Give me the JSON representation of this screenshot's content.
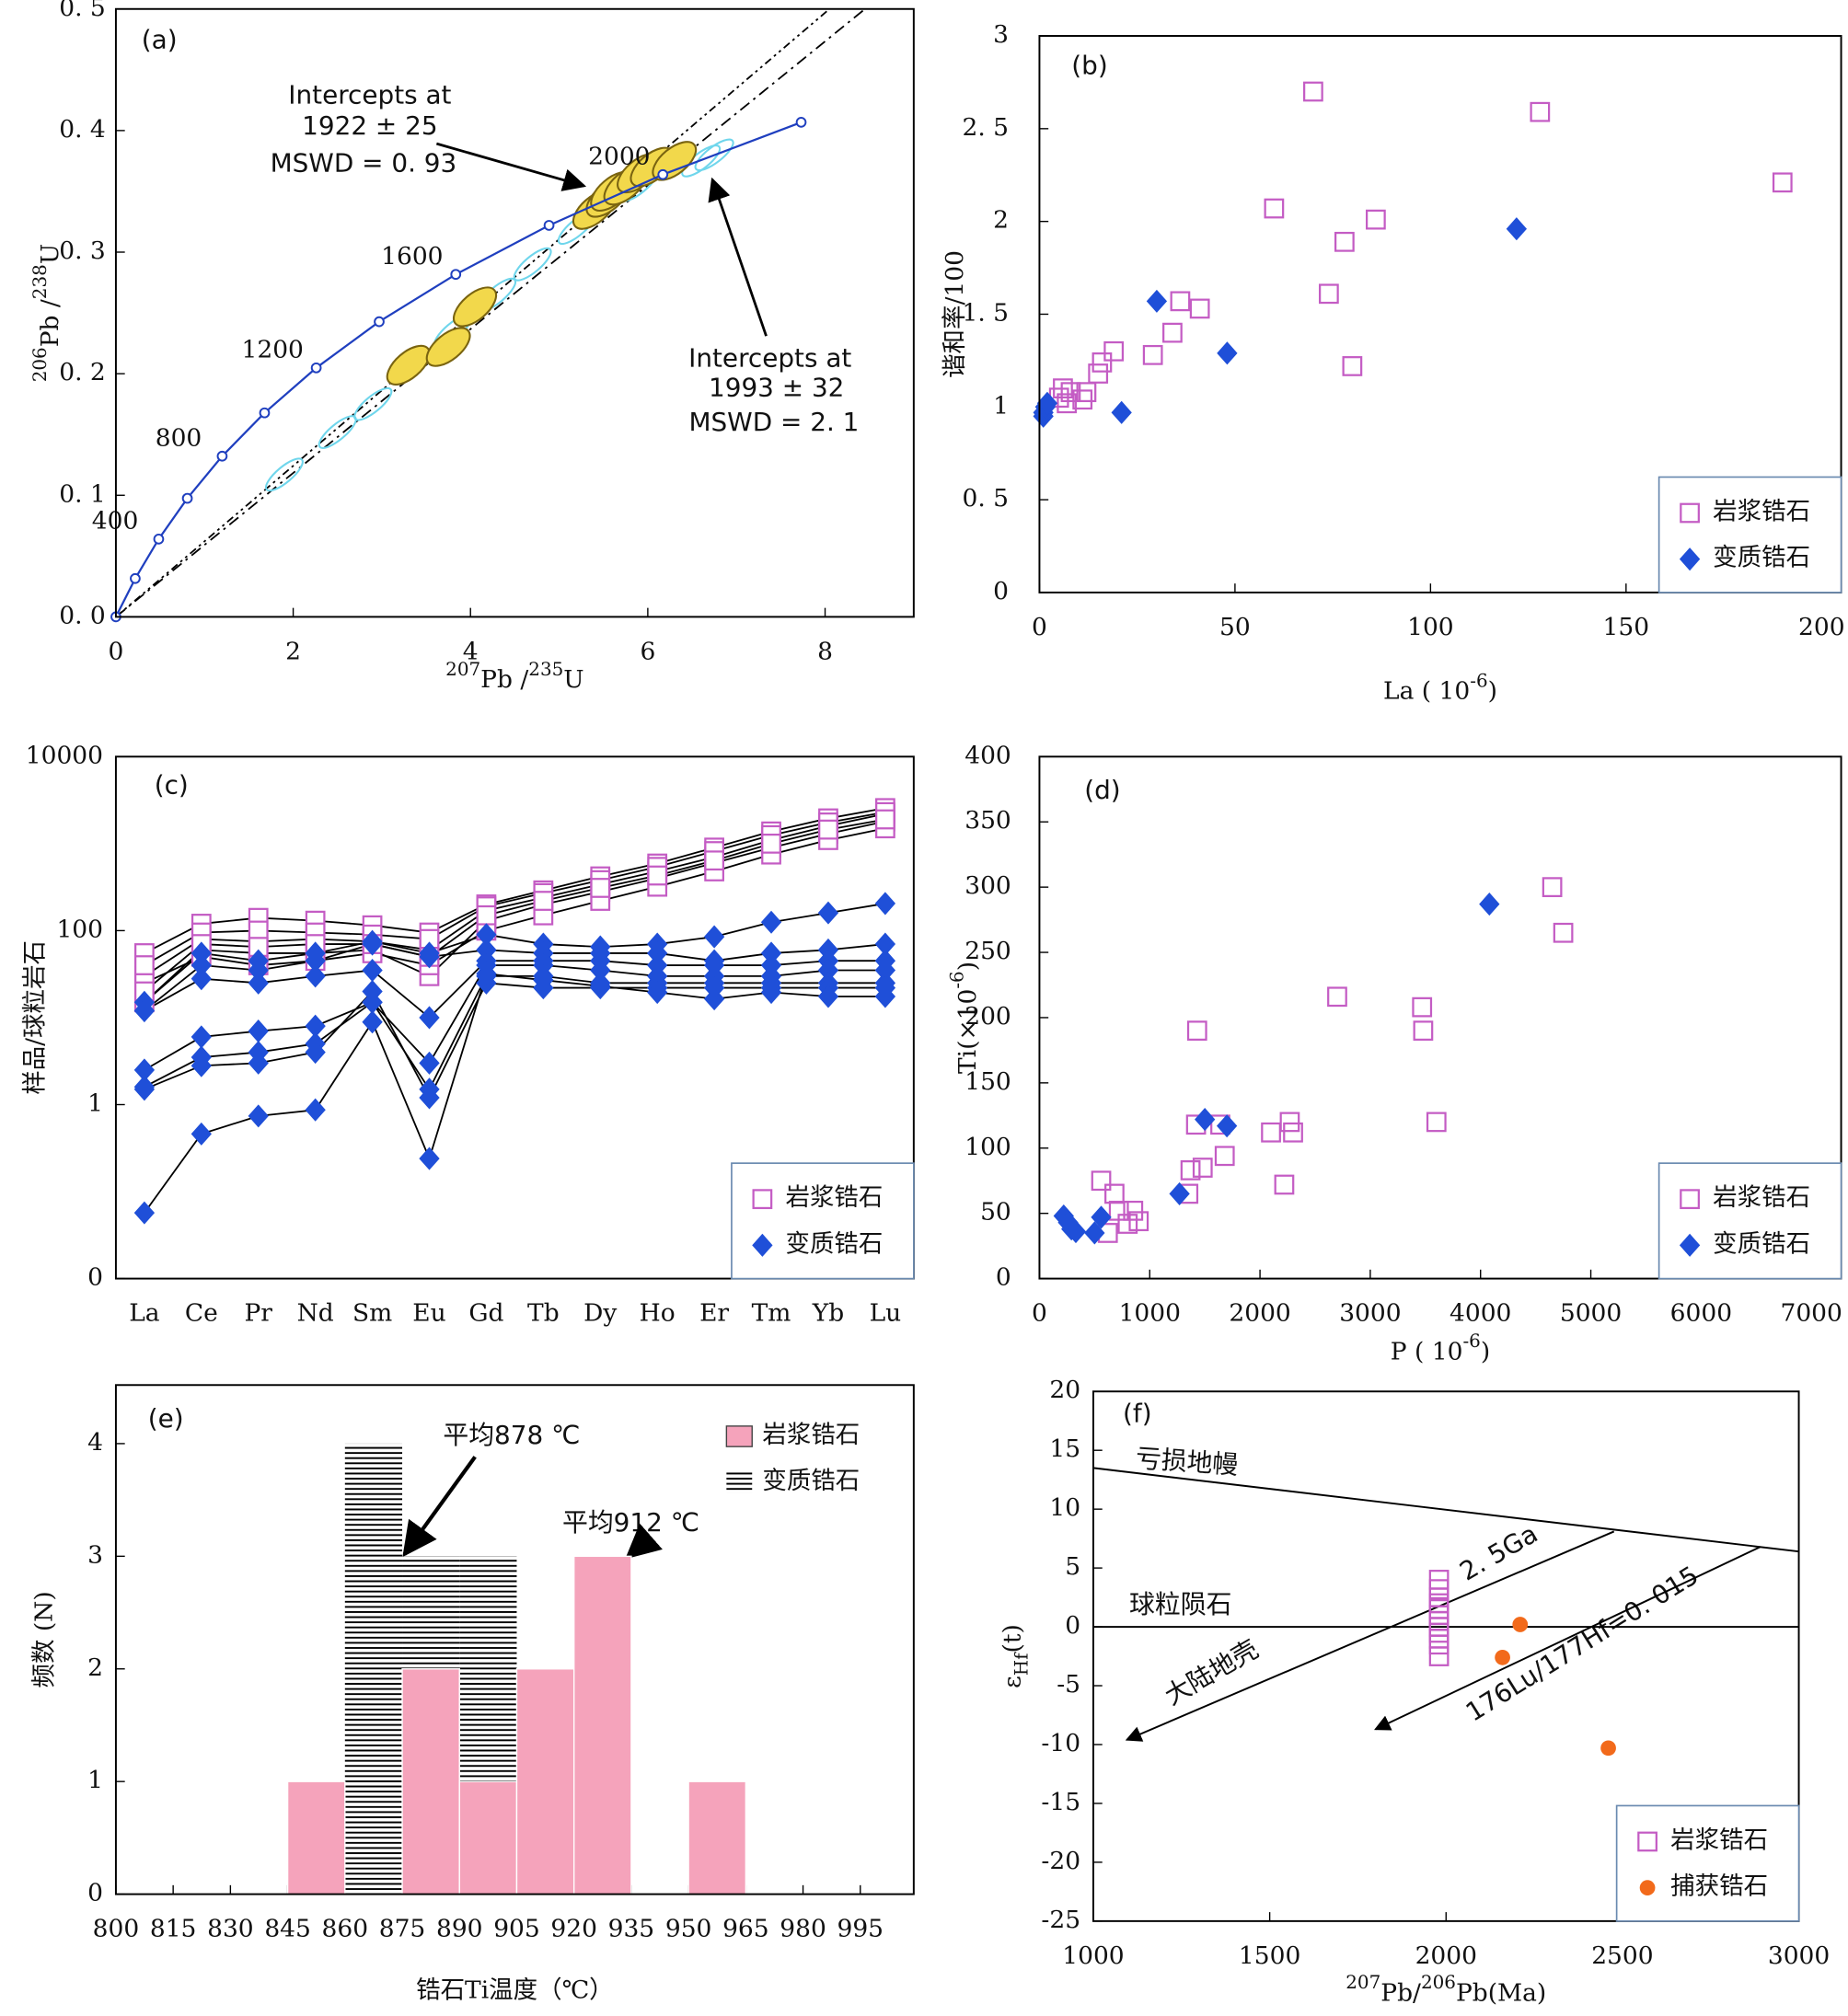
{
  "chart_data": [
    {
      "type": "concordia",
      "panel_label": "(a)",
      "xlabel": [
        {
          "sup": "207"
        },
        "Pb /",
        {
          "sup": "235"
        },
        "U"
      ],
      "ylabel": [
        {
          "sup": "206"
        },
        "Pb /",
        {
          "sup": "238"
        },
        "U"
      ],
      "xlim": [
        0,
        9
      ],
      "ylim": [
        0,
        0.5
      ],
      "xticks": [
        0,
        2,
        4,
        6,
        8
      ],
      "yticks": [
        {
          "value": 0,
          "label": "0. 0"
        },
        {
          "value": 0.1,
          "label": "0. 1"
        },
        {
          "value": 0.2,
          "label": "0. 2"
        },
        {
          "value": 0.3,
          "label": "0. 3"
        },
        {
          "value": 0.4,
          "label": "0. 4"
        },
        {
          "value": 0.5,
          "label": "0. 5"
        }
      ],
      "concordia": {
        "color": "#1f3fbf",
        "ages": [
          null,
          null,
          400,
          null,
          800,
          null,
          1200,
          null,
          1600,
          null,
          2000,
          null
        ],
        "x": [
          0,
          0.218,
          0.483,
          0.806,
          1.199,
          1.677,
          2.26,
          2.97,
          3.834,
          4.886,
          6.17,
          7.73
        ],
        "y": [
          0,
          0.0315,
          0.064,
          0.0975,
          0.1322,
          0.1678,
          0.2048,
          0.2428,
          0.2817,
          0.322,
          0.3638,
          0.4068
        ]
      },
      "discordia": [
        {
          "x": [
            0,
            8.05
          ],
          "y": [
            0,
            0.5
          ]
        },
        {
          "x": [
            0,
            8.45
          ],
          "y": [
            0,
            0.5
          ]
        }
      ],
      "ellipses": [
        {
          "color": "#f2d84b",
          "filled": true,
          "x": [
            3.3,
            3.75,
            4.05,
            5.4,
            5.55,
            5.6,
            5.75,
            5.9,
            6.05,
            6.3
          ],
          "y": [
            0.207,
            0.222,
            0.255,
            0.335,
            0.345,
            0.35,
            0.355,
            0.365,
            0.37,
            0.375
          ]
        },
        {
          "color": "#6fd6ec",
          "filled": false,
          "x": [
            1.9,
            2.5,
            2.9,
            3.8,
            4.3,
            4.7,
            5.2,
            5.9,
            6.6,
            6.75
          ],
          "y": [
            0.117,
            0.152,
            0.175,
            0.235,
            0.265,
            0.29,
            0.32,
            0.355,
            0.375,
            0.38
          ]
        }
      ],
      "annotations": [
        "Intercepts at",
        "1922 ± 25",
        "MSWD = 0. 93",
        "Intercepts at",
        "1993 ± 32",
        "MSWD = 2. 1"
      ]
    },
    {
      "type": "scatter",
      "panel_label": "(b)",
      "xlabel": [
        "La ( 10",
        {
          "sup": "-6"
        },
        ")"
      ],
      "ylabel": [
        "谐和率/100"
      ],
      "xlim": [
        0,
        205
      ],
      "ylim": [
        0,
        3
      ],
      "xticks": [
        0,
        50,
        100,
        150,
        200
      ],
      "yticks": [
        0,
        {
          "value": 0.5,
          "label": "0. 5"
        },
        1,
        {
          "value": 1.5,
          "label": "1. 5"
        },
        2,
        {
          "value": 2.5,
          "label": "2. 5"
        },
        3
      ],
      "legend": "lower right",
      "series": [
        {
          "name": "岩浆锆石",
          "color": "#c45cc4",
          "marker": "square",
          "x": [
            5,
            6,
            7,
            8,
            11,
            12,
            15,
            16,
            19,
            29,
            34,
            36,
            41,
            60,
            70,
            74,
            78,
            80,
            86,
            128,
            190
          ],
          "y": [
            1.05,
            1.1,
            1.02,
            1.08,
            1.04,
            1.08,
            1.18,
            1.24,
            1.3,
            1.28,
            1.4,
            1.57,
            1.53,
            2.07,
            2.7,
            1.61,
            1.89,
            1.22,
            2.01,
            2.59,
            2.21
          ]
        },
        {
          "name": "变质锆石",
          "color": "#1f4fd8",
          "marker": "diamond",
          "x": [
            1,
            1,
            1.5,
            2,
            21,
            30,
            48,
            122
          ],
          "y": [
            0.95,
            0.97,
            1.0,
            1.02,
            0.97,
            1.57,
            1.29,
            1.96
          ]
        }
      ]
    },
    {
      "type": "spider",
      "panel_label": "(c)",
      "ylabel": [
        "样品/球粒岩石"
      ],
      "categories": [
        "La",
        "Ce",
        "Pr",
        "Nd",
        "Sm",
        "Eu",
        "Gd",
        "Tb",
        "Dy",
        "Ho",
        "Er",
        "Tm",
        "Yb",
        "Lu"
      ],
      "log": true,
      "ylim": [
        0.01,
        10000
      ],
      "yticks": [
        {
          "value": 0.01,
          "label": "0"
        },
        1,
        100,
        10000
      ],
      "legend": "lower right",
      "series": [
        {
          "name": "岩浆锆石",
          "color": "#c45cc4",
          "marker": "square",
          "line_color": "#000000",
          "values": [
            [
              55,
              120,
              140,
              130,
              115,
              95,
              200,
              290,
              420,
              590,
              900,
              1380,
              1950,
              2560
            ],
            [
              30,
              80,
              75,
              80,
              75,
              60,
              170,
              240,
              340,
              480,
              700,
              1100,
              1600,
              2200
            ],
            [
              15,
              60,
              55,
              55,
              60,
              30,
              130,
              200,
              280,
              400,
              600,
              900,
              1300,
              1800
            ],
            [
              25,
              50,
              40,
              45,
              55,
              40,
              100,
              150,
              220,
              320,
              480,
              750,
              1100,
              1500
            ],
            [
              40,
              95,
              100,
              95,
              90,
              80,
              190,
              270,
              380,
              540,
              820,
              1250,
              1750,
              2300
            ],
            [
              20,
              70,
              65,
              70,
              70,
              50,
              150,
              220,
              310,
              430,
              640,
              1000,
              1450,
              1900
            ]
          ]
        },
        {
          "name": "变质锆石",
          "color": "#1f4fd8",
          "marker": "diamond",
          "line_color": "#000000",
          "values": [
            [
              15,
              55,
              45,
              55,
              75,
              55,
              90,
              70,
              65,
              70,
              85,
              125,
              160,
              205
            ],
            [
              12,
              40,
              35,
              45,
              70,
              50,
              60,
              55,
              55,
              55,
              45,
              55,
              60,
              70
            ],
            [
              12,
              28,
              25,
              30,
              35,
              10,
              45,
              45,
              45,
              40,
              40,
              40,
              45,
              45
            ],
            [
              2.5,
              6,
              7,
              8,
              15,
              3,
              40,
              40,
              35,
              30,
              30,
              30,
              35,
              35
            ],
            [
              1.6,
              3.5,
              4,
              5,
              15,
              1.5,
              30,
              30,
              25,
              25,
              25,
              25,
              25,
              25
            ],
            [
              1.5,
              2.8,
              3,
              4,
              20,
              1.2,
              25,
              22,
              22,
              22,
              22,
              22,
              22,
              22
            ],
            [
              0.057,
              0.46,
              0.74,
              0.87,
              8.9,
              0.24,
              32,
              27,
              23,
              19.5,
              16.4,
              19.5,
              17.5,
              17.5
            ]
          ]
        }
      ]
    },
    {
      "type": "scatter",
      "panel_label": "(d)",
      "xlabel": [
        "P ( 10",
        {
          "sup": "-6"
        },
        ")"
      ],
      "ylabel": [
        "Ti(×10",
        {
          "sup": "-6"
        },
        ")"
      ],
      "xlim": [
        0,
        7270
      ],
      "ylim": [
        0,
        400
      ],
      "xticks": [
        0,
        1000,
        2000,
        3000,
        4000,
        5000,
        6000,
        7000
      ],
      "yticks": [
        0,
        50,
        100,
        150,
        200,
        250,
        300,
        350,
        400
      ],
      "legend": "lower right",
      "series": [
        {
          "name": "岩浆锆石",
          "color": "#c45cc4",
          "marker": "square",
          "x": [
            560,
            620,
            680,
            720,
            800,
            850,
            900,
            1350,
            1370,
            1420,
            1430,
            1480,
            1640,
            1680,
            2100,
            2220,
            2270,
            2300,
            2700,
            3470,
            3480,
            3600,
            4650,
            4750
          ],
          "y": [
            75,
            35,
            65,
            52,
            42,
            52,
            44,
            65,
            83,
            118,
            190,
            85,
            118,
            94,
            112,
            72,
            120,
            112,
            216,
            208,
            190,
            120,
            300,
            265
          ]
        },
        {
          "name": "变质锆石",
          "color": "#1f4fd8",
          "marker": "diamond",
          "x": [
            220,
            260,
            290,
            330,
            500,
            560,
            1270,
            1500,
            1700,
            4080
          ],
          "y": [
            48,
            43,
            38,
            36,
            35,
            47,
            65,
            122,
            117,
            287
          ]
        }
      ]
    },
    {
      "type": "histogram",
      "panel_label": "(e)",
      "xlabel": [
        "锆石Ti温度（℃）"
      ],
      "ylabel": [
        "频数 (N)"
      ],
      "xlim": [
        800,
        1009
      ],
      "ylim": [
        0,
        4.52
      ],
      "xticks": [
        800,
        815,
        830,
        845,
        860,
        875,
        890,
        905,
        920,
        935,
        950,
        965,
        980,
        995
      ],
      "yticks": [
        0,
        1,
        2,
        3,
        4
      ],
      "legend": "upper right",
      "series": [
        {
          "name": "岩浆锆石",
          "color": "#f5a3bb",
          "hatch": false,
          "bins": [
            845,
            860,
            875,
            890,
            905,
            920,
            935,
            950,
            965
          ],
          "values": [
            1,
            0,
            2,
            1,
            2,
            3,
            0,
            1
          ]
        },
        {
          "name": "变质锆石",
          "color": "#c8dc6e",
          "hatch": true,
          "bins": [
            860,
            875,
            890,
            905
          ],
          "values": [
            4,
            3,
            3
          ]
        }
      ],
      "annotations": [
        "平均878 ℃",
        "平均912 ℃"
      ]
    },
    {
      "type": "scatter",
      "panel_label": "(f)",
      "xlabel": [
        {
          "sup": "207"
        },
        "Pb/",
        {
          "sup": "206"
        },
        "Pb(Ma)"
      ],
      "ylabel": [
        "ε",
        {
          "sub": "Hf"
        },
        "(t)"
      ],
      "xlim": [
        1000,
        3000
      ],
      "ylim": [
        -25,
        20
      ],
      "xticks": [
        1000,
        1500,
        2000,
        2500,
        3000
      ],
      "yticks": [
        -25,
        -20,
        -15,
        -10,
        -5,
        0,
        5,
        10,
        15,
        20
      ],
      "legend": "lower right",
      "lines": [
        {
          "x": [
            1000,
            3000
          ],
          "y": [
            13.5,
            6.4
          ],
          "arrow": false
        },
        {
          "x": [
            1000,
            3000
          ],
          "y": [
            0,
            0
          ],
          "arrow": false
        },
        {
          "x": [
            2476,
            1095
          ],
          "y": [
            8.1,
            -9.6
          ],
          "arrow": true
        },
        {
          "x": [
            2891,
            1800
          ],
          "y": [
            6.8,
            -8.7
          ],
          "arrow": true
        }
      ],
      "series": [
        {
          "name": "岩浆锆石",
          "color": "#c45cc4",
          "marker": "square",
          "x": [
            1980,
            1980,
            1980,
            1980,
            1980,
            1980,
            1980,
            1980,
            1980,
            1980,
            1980,
            1980
          ],
          "y": [
            4,
            3.2,
            2.5,
            2,
            1.5,
            1,
            0.5,
            0,
            -0.5,
            -1,
            -1.5,
            -2.5
          ]
        },
        {
          "name": "捕获锆石",
          "color": "#f26a1b",
          "marker": "circle",
          "x": [
            2210,
            2160,
            2460
          ],
          "y": [
            0.2,
            -2.6,
            -10.3
          ]
        }
      ],
      "annotations": [
        "亏损地幔",
        "球粒陨石",
        "大陆地壳",
        "2. 5Ga",
        "176Lu/177Hf=0. 015"
      ]
    }
  ]
}
